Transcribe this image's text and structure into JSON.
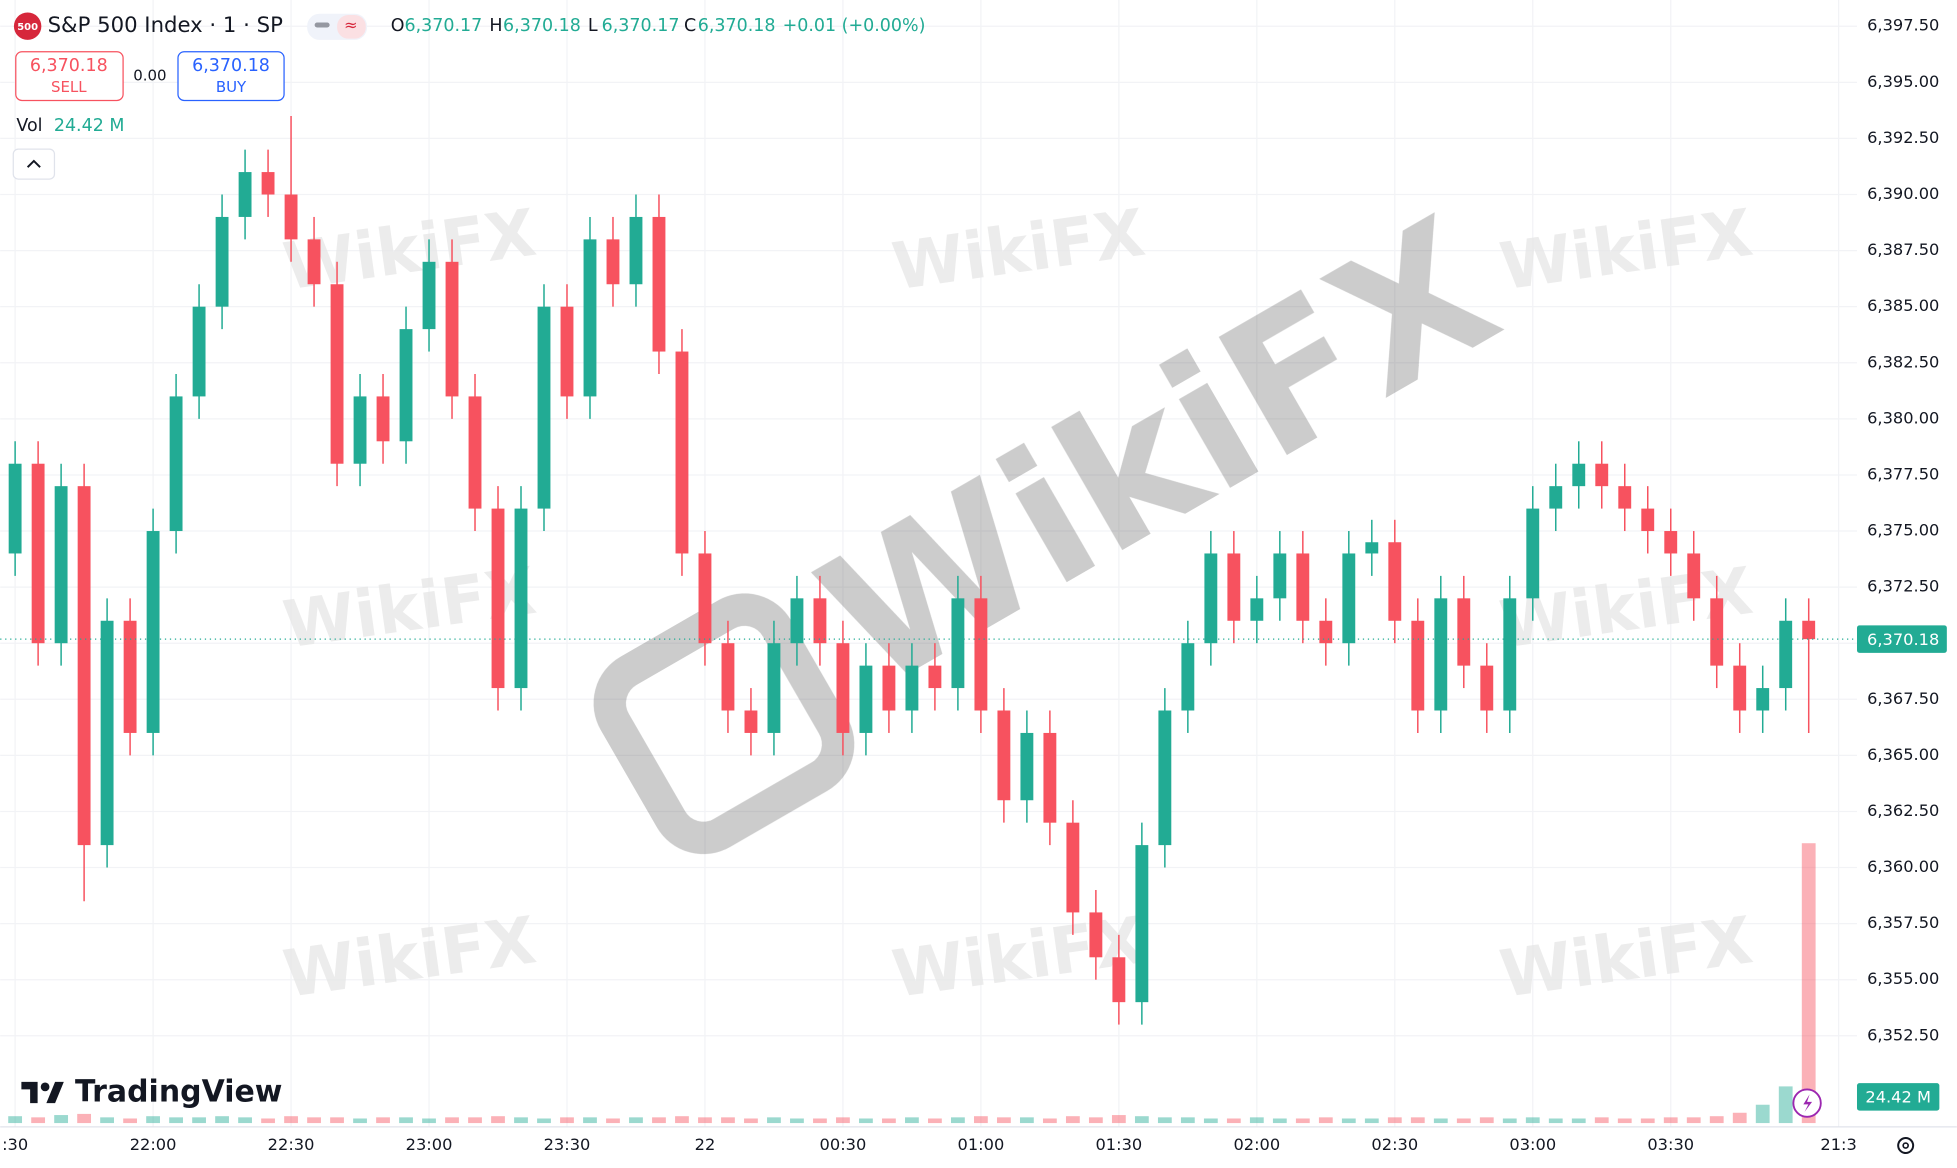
{
  "header": {
    "symbol": "S&P 500 Index · 1 · SP",
    "logo": "500",
    "ohlc": [
      {
        "key": "O",
        "value": "6,370.17"
      },
      {
        "key": "H",
        "value": "6,370.18"
      },
      {
        "key": "L",
        "value": "6,370.17"
      },
      {
        "key": "C",
        "value": "6,370.18"
      }
    ],
    "change": "+0.01 (+0.00%)",
    "sell": {
      "price": "6,370.18",
      "label": "SELL"
    },
    "spread": "0.00",
    "buy": {
      "price": "6,370.18",
      "label": "BUY"
    },
    "vol_label": "Vol",
    "vol_value": "24.42 M"
  },
  "branding": {
    "logo": "TradingView",
    "watermark": "WikiFX"
  },
  "chart_data": {
    "type": "candlestick",
    "up_color": "#22ab94",
    "down_color": "#f7525f",
    "open": [
      6374,
      6378,
      6370,
      6377,
      6361,
      6371,
      6366,
      6375,
      6381,
      6385,
      6389,
      6391,
      6390,
      6388,
      6386,
      6378,
      6381,
      6379,
      6384,
      6387,
      6381,
      6376,
      6368,
      6376,
      6385,
      6381,
      6388,
      6386,
      6389,
      6383,
      6374,
      6370,
      6367,
      6366,
      6370,
      6372,
      6370,
      6366,
      6369,
      6367,
      6369,
      6368,
      6372,
      6367,
      6363,
      6366,
      6362,
      6358,
      6356,
      6354,
      6361,
      6367,
      6370,
      6374,
      6371,
      6372,
      6374,
      6371,
      6370,
      6374,
      6374.5,
      6371,
      6367,
      6372,
      6369,
      6367,
      6372,
      6376,
      6377,
      6378,
      6377,
      6376,
      6375,
      6374,
      6372,
      6369,
      6367,
      6368,
      6371
    ],
    "high": [
      6379,
      6379,
      6378,
      6378,
      6372,
      6372,
      6376,
      6382,
      6386,
      6390,
      6392,
      6392,
      6393.5,
      6389,
      6387,
      6382,
      6382,
      6385,
      6388,
      6388,
      6382,
      6377,
      6377,
      6386,
      6386,
      6389,
      6389,
      6390,
      6390,
      6384,
      6375,
      6371,
      6368,
      6371,
      6373,
      6373,
      6371,
      6370,
      6370,
      6370,
      6370,
      6373,
      6373,
      6368,
      6367,
      6367,
      6363,
      6359,
      6357,
      6362,
      6368,
      6371,
      6375,
      6375,
      6373,
      6375,
      6375,
      6372,
      6375,
      6375.5,
      6375.5,
      6372,
      6373,
      6373,
      6370,
      6373,
      6377,
      6378,
      6379,
      6379,
      6378,
      6377,
      6376,
      6375,
      6373,
      6370,
      6369,
      6372,
      6372
    ],
    "low": [
      6373,
      6369,
      6369,
      6358.5,
      6360,
      6365,
      6365,
      6374,
      6380,
      6384,
      6388,
      6389,
      6387,
      6385,
      6377,
      6377,
      6378,
      6378,
      6383,
      6380,
      6375,
      6367,
      6367,
      6375,
      6380,
      6380,
      6385,
      6385,
      6382,
      6373,
      6369,
      6366,
      6365,
      6365,
      6369,
      6369,
      6365,
      6365,
      6366,
      6366,
      6367,
      6367,
      6366,
      6362,
      6362,
      6361,
      6357,
      6355,
      6353,
      6353,
      6360,
      6366,
      6369,
      6370,
      6370,
      6371,
      6370,
      6369,
      6369,
      6373,
      6370,
      6366,
      6366,
      6368,
      6366,
      6366,
      6371,
      6375,
      6376,
      6376,
      6375,
      6374,
      6373,
      6371,
      6368,
      6366,
      6366,
      6367,
      6366
    ],
    "close": [
      6378,
      6370,
      6377,
      6361,
      6371,
      6366,
      6375,
      6381,
      6385,
      6389,
      6391,
      6390,
      6388,
      6386,
      6378,
      6381,
      6379,
      6384,
      6387,
      6381,
      6376,
      6368,
      6376,
      6385,
      6381,
      6388,
      6386,
      6389,
      6383,
      6374,
      6370,
      6367,
      6366,
      6370,
      6372,
      6370,
      6366,
      6369,
      6367,
      6369,
      6368,
      6372,
      6367,
      6363,
      6366,
      6362,
      6358,
      6356,
      6354,
      6361,
      6367,
      6370,
      6374,
      6371,
      6372,
      6374,
      6371,
      6370,
      6374,
      6374.5,
      6371,
      6367,
      6372,
      6369,
      6367,
      6372,
      6376,
      6377,
      6378,
      6377,
      6376,
      6375,
      6374,
      6372,
      6369,
      6367,
      6368,
      6371,
      6370.18
    ],
    "volume": [
      0.6,
      0.5,
      0.7,
      0.8,
      0.5,
      0.4,
      0.6,
      0.5,
      0.5,
      0.6,
      0.5,
      0.4,
      0.6,
      0.5,
      0.5,
      0.4,
      0.5,
      0.5,
      0.4,
      0.5,
      0.5,
      0.6,
      0.5,
      0.4,
      0.5,
      0.5,
      0.4,
      0.5,
      0.5,
      0.6,
      0.5,
      0.5,
      0.4,
      0.5,
      0.4,
      0.4,
      0.5,
      0.4,
      0.4,
      0.5,
      0.4,
      0.5,
      0.6,
      0.5,
      0.5,
      0.4,
      0.6,
      0.5,
      0.7,
      0.6,
      0.5,
      0.5,
      0.4,
      0.4,
      0.5,
      0.4,
      0.4,
      0.5,
      0.4,
      0.4,
      0.5,
      0.5,
      0.4,
      0.4,
      0.5,
      0.4,
      0.5,
      0.4,
      0.4,
      0.5,
      0.4,
      0.4,
      0.5,
      0.5,
      0.6,
      0.9,
      1.6,
      3.2,
      24.42
    ],
    "volume_ylim": [
      0,
      98
    ],
    "last_price": {
      "value": 6370.18,
      "label": "6,370.18"
    },
    "xlim": [
      -0.65,
      80.1
    ],
    "xticks": [
      {
        "value": 0,
        "label": ":30"
      },
      {
        "value": 6,
        "label": "22:00"
      },
      {
        "value": 12,
        "label": "22:30"
      },
      {
        "value": 18,
        "label": "23:00"
      },
      {
        "value": 24,
        "label": "23:30"
      },
      {
        "value": 30,
        "label": "22"
      },
      {
        "value": 36,
        "label": "00:30"
      },
      {
        "value": 42,
        "label": "01:00"
      },
      {
        "value": 48,
        "label": "01:30"
      },
      {
        "value": 54,
        "label": "02:00"
      },
      {
        "value": 60,
        "label": "02:30"
      },
      {
        "value": 66,
        "label": "03:00"
      },
      {
        "value": 72,
        "label": "03:30"
      },
      {
        "value": 79.3,
        "label": "21:3"
      }
    ],
    "ylim": [
      6348.61,
      6398.67
    ],
    "yticks": [
      {
        "value": 6352.5,
        "label": "6,352.50"
      },
      {
        "value": 6355,
        "label": "6,355.00"
      },
      {
        "value": 6357.5,
        "label": "6,357.50"
      },
      {
        "value": 6360,
        "label": "6,360.00"
      },
      {
        "value": 6362.5,
        "label": "6,362.50"
      },
      {
        "value": 6365,
        "label": "6,365.00"
      },
      {
        "value": 6367.5,
        "label": "6,367.50"
      },
      {
        "value": 6370,
        "label": "6,370.00"
      },
      {
        "value": 6372.5,
        "label": "6,372.50"
      },
      {
        "value": 6375,
        "label": "6,375.00"
      },
      {
        "value": 6377.5,
        "label": "6,377.50"
      },
      {
        "value": 6380,
        "label": "6,380.00"
      },
      {
        "value": 6382.5,
        "label": "6,382.50"
      },
      {
        "value": 6385,
        "label": "6,385.00"
      },
      {
        "value": 6387.5,
        "label": "6,387.50"
      },
      {
        "value": 6390,
        "label": "6,390.00"
      },
      {
        "value": 6392.5,
        "label": "6,392.50"
      },
      {
        "value": 6395,
        "label": "6,395.00"
      },
      {
        "value": 6397.5,
        "label": "6,397.50"
      }
    ],
    "grid": true
  }
}
